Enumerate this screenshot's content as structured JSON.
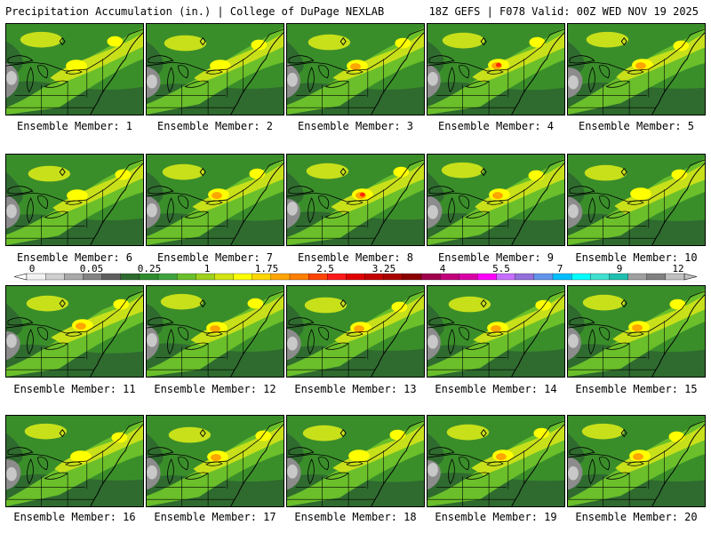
{
  "header": {
    "title": "Precipitation Accumulation (in.) | College of DuPage NEXLAB",
    "run_info": "18Z GEFS | F078 Valid: 00Z WED NOV 19 2025"
  },
  "panel_label_prefix": "Ensemble Member:",
  "members": [
    {
      "id": "1",
      "label": "Ensemble Member: 1",
      "peak": "light"
    },
    {
      "id": "2",
      "label": "Ensemble Member: 2",
      "peak": "light"
    },
    {
      "id": "3",
      "label": "Ensemble Member: 3",
      "peak": "moderate"
    },
    {
      "id": "4",
      "label": "Ensemble Member: 4",
      "peak": "heavy"
    },
    {
      "id": "5",
      "label": "Ensemble Member: 5",
      "peak": "moderate"
    },
    {
      "id": "6",
      "label": "Ensemble Member: 6",
      "peak": "light"
    },
    {
      "id": "7",
      "label": "Ensemble Member: 7",
      "peak": "moderate"
    },
    {
      "id": "8",
      "label": "Ensemble Member: 8",
      "peak": "heavy"
    },
    {
      "id": "9",
      "label": "Ensemble Member: 9",
      "peak": "moderate"
    },
    {
      "id": "10",
      "label": "Ensemble Member: 10",
      "peak": "light"
    },
    {
      "id": "11",
      "label": "Ensemble Member: 11",
      "peak": "moderate"
    },
    {
      "id": "12",
      "label": "Ensemble Member: 12",
      "peak": "moderate"
    },
    {
      "id": "13",
      "label": "Ensemble Member: 13",
      "peak": "moderate"
    },
    {
      "id": "14",
      "label": "Ensemble Member: 14",
      "peak": "moderate"
    },
    {
      "id": "15",
      "label": "Ensemble Member: 15",
      "peak": "moderate"
    },
    {
      "id": "16",
      "label": "Ensemble Member: 16",
      "peak": "light"
    },
    {
      "id": "17",
      "label": "Ensemble Member: 17",
      "peak": "moderate"
    },
    {
      "id": "18",
      "label": "Ensemble Member: 18",
      "peak": "light"
    },
    {
      "id": "19",
      "label": "Ensemble Member: 19",
      "peak": "moderate"
    },
    {
      "id": "20",
      "label": "Ensemble Member: 20",
      "peak": "moderate"
    }
  ],
  "legend": {
    "units": "in.",
    "tick_labels": [
      "0",
      "0.05",
      "0.25",
      "1",
      "1.75",
      "2.5",
      "3.25",
      "4",
      "5.5",
      "7",
      "9",
      "12"
    ],
    "colors": [
      "#f2f2f2",
      "#cfcfcf",
      "#a9a9a9",
      "#838383",
      "#5f5f5f",
      "#2f6a2f",
      "#2e8b2e",
      "#3fa33f",
      "#6abf2a",
      "#9ed11e",
      "#d3e413",
      "#ffff00",
      "#ffd700",
      "#ffa500",
      "#ff7f00",
      "#ff4500",
      "#ff1a1a",
      "#e00000",
      "#c40000",
      "#a80000",
      "#8b0000",
      "#a0004d",
      "#c1007a",
      "#d900a6",
      "#ff00ff",
      "#c86eff",
      "#9370db",
      "#6495ed",
      "#00bfff",
      "#00ffff",
      "#40e0d0",
      "#20c0b0",
      "#a0a0a0",
      "#808080",
      "#c0c0c0"
    ]
  },
  "map_colors": {
    "dark_green": "#2f6a2f",
    "green": "#3a8e2a",
    "light_green": "#6abf2a",
    "yellow_green": "#c8e01a",
    "yellow": "#ffff00",
    "orange": "#ffa500",
    "red": "#ff2a00",
    "gray": "#8c8c8c",
    "light_gray": "#c8c8c8"
  }
}
